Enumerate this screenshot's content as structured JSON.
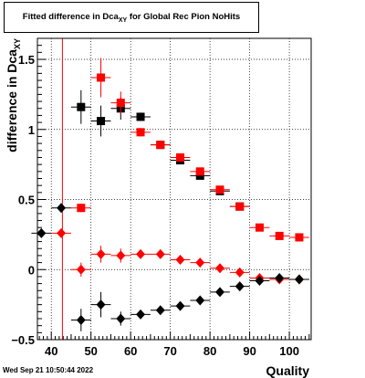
{
  "header": {
    "title_main": "Fitted difference in Dca",
    "title_sub": "XY",
    "title_tail": "for Global Rec Pion NoHits"
  },
  "footer": {
    "timestamp": "Wed Sep 21 10:50:44 2022"
  },
  "chart_data": {
    "type": "scatter",
    "title": "Fitted difference in Dca_XY for Global Rec Pion NoHits",
    "xlabel": "Quality",
    "ylabel": "difference in Dca",
    "ylabel_sub": "XY",
    "xlim": [
      36.5,
      105.5
    ],
    "ylim": [
      -0.5,
      1.65
    ],
    "xticks": [
      40,
      50,
      60,
      70,
      80,
      90,
      100
    ],
    "yticks": [
      -0.5,
      0,
      0.5,
      1,
      1.5
    ],
    "ytick_labels": [
      "−0.5",
      "0",
      "0.5",
      "1",
      "1.5"
    ],
    "grid": true,
    "vertical_line_x": 42.8,
    "series": [
      {
        "marker": "square",
        "color": "#000000",
        "x": [
          47.5,
          52.5,
          57.5,
          62.5,
          67.5,
          72.5,
          77.5,
          82.5,
          87.5
        ],
        "y": [
          1.16,
          1.06,
          1.15,
          1.09,
          0.89,
          0.78,
          0.67,
          0.56,
          0.45
        ],
        "yerr": [
          0.12,
          0.11,
          0.08,
          0.03,
          0.02,
          0.02,
          0.02,
          0.02,
          0.02
        ]
      },
      {
        "marker": "square",
        "color": "#ff0000",
        "x": [
          47.5,
          52.5,
          57.5,
          62.5,
          67.5,
          72.5,
          77.5,
          82.5,
          87.5,
          92.5,
          97.5,
          102.5
        ],
        "y": [
          0.44,
          1.37,
          1.19,
          0.98,
          0.89,
          0.8,
          0.7,
          0.57,
          0.45,
          0.3,
          0.24,
          0.23
        ],
        "yerr": [
          0.03,
          0.14,
          0.08,
          0.03,
          0.02,
          0.02,
          0.02,
          0.02,
          0.02,
          0.01,
          0.01,
          0.01
        ]
      },
      {
        "marker": "diamond",
        "color": "#ff0000",
        "x": [
          42.5,
          47.5,
          52.5,
          57.5,
          62.5,
          67.5,
          72.5,
          77.5,
          82.5,
          87.5,
          92.5,
          97.5,
          102.5
        ],
        "y": [
          0.26,
          0.0,
          0.11,
          0.1,
          0.11,
          0.11,
          0.07,
          0.05,
          0.01,
          -0.02,
          -0.06,
          -0.07,
          -0.07
        ],
        "yerr": [
          0.0,
          0.05,
          0.06,
          0.05,
          0.03,
          0.02,
          0.02,
          0.02,
          0.02,
          0.01,
          0.01,
          0.01,
          0.01
        ]
      },
      {
        "marker": "diamond",
        "color": "#000000",
        "x": [
          37.5,
          42.5,
          47.5,
          52.5,
          57.5,
          62.5,
          67.5,
          72.5,
          77.5,
          82.5,
          87.5,
          92.5,
          97.5,
          102.5
        ],
        "y": [
          0.26,
          0.44,
          -0.36,
          -0.25,
          -0.35,
          -0.32,
          -0.29,
          -0.26,
          -0.22,
          -0.16,
          -0.12,
          -0.08,
          -0.06,
          -0.07
        ],
        "yerr": [
          0.0,
          0.0,
          0.08,
          0.09,
          0.05,
          0.03,
          0.02,
          0.02,
          0.02,
          0.02,
          0.02,
          0.01,
          0.01,
          0.01
        ]
      }
    ]
  }
}
